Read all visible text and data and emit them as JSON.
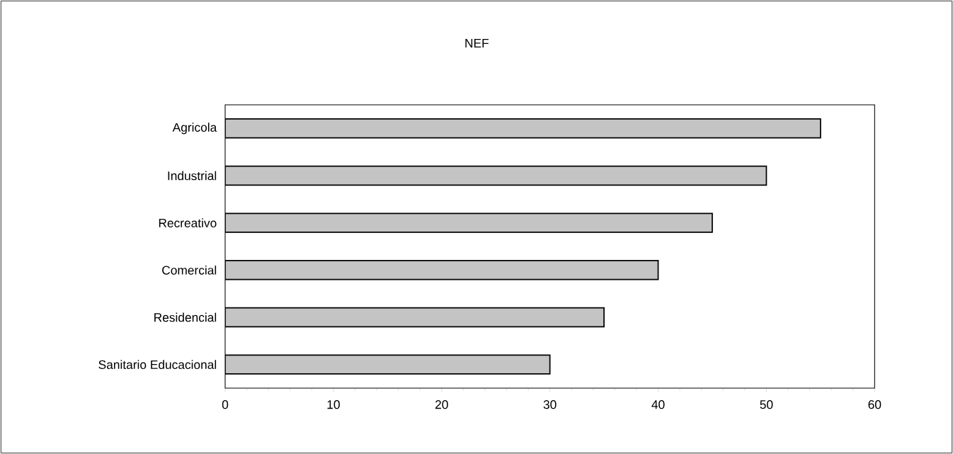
{
  "chart_data": {
    "type": "bar",
    "orientation": "horizontal",
    "title": "NEF",
    "categories": [
      "Agricola",
      "Industrial",
      "Recreativo",
      "Comercial",
      "Residencial",
      "Sanitario Educacional"
    ],
    "values": [
      55,
      50,
      45,
      40,
      35,
      30
    ],
    "color": "#c4c4c4",
    "xlim": [
      0,
      60
    ],
    "xticks": [
      0,
      10,
      20,
      30,
      40,
      50,
      60
    ],
    "grid": false
  }
}
